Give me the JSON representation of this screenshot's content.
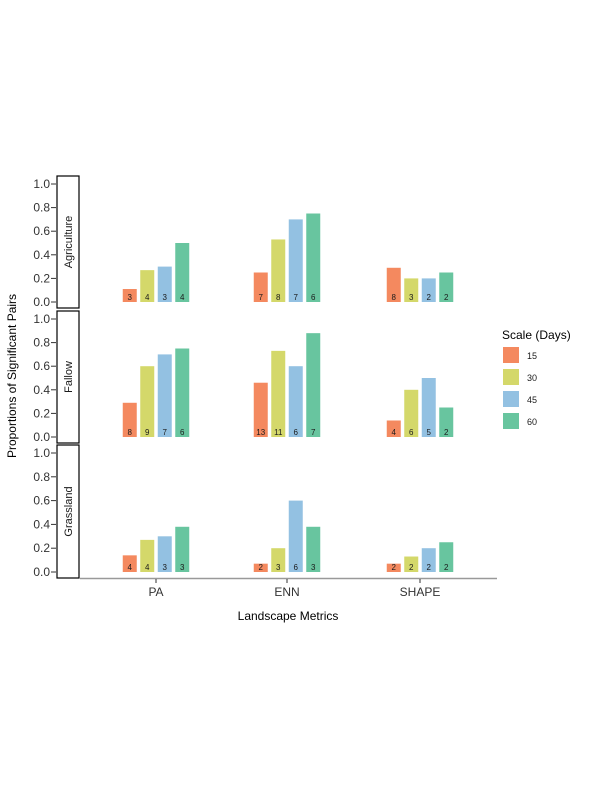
{
  "chart_data": {
    "type": "bar",
    "xlabel": "Landscape Metrics",
    "ylabel": "Proportions of Significant Pairs",
    "ylim": [
      0,
      1
    ],
    "yticks": [
      "0.0",
      "0.2",
      "0.4",
      "0.6",
      "0.8",
      "1.0"
    ],
    "categories": [
      "PA",
      "ENN",
      "SHAPE"
    ],
    "legend": {
      "title": "Scale (Days)",
      "position": "right",
      "items": [
        {
          "label": "15",
          "color": "#f4895f"
        },
        {
          "label": "30",
          "color": "#d4d86a"
        },
        {
          "label": "45",
          "color": "#93c1e2"
        },
        {
          "label": "60",
          "color": "#68c59f"
        }
      ]
    },
    "panels": [
      {
        "name": "Agriculture",
        "series_values": [
          [
            0.11,
            0.27,
            0.3,
            0.5
          ],
          [
            0.25,
            0.53,
            0.7,
            0.75
          ],
          [
            0.29,
            0.2,
            0.2,
            0.25
          ]
        ],
        "series_counts": [
          [
            "3",
            "4",
            "3",
            "4"
          ],
          [
            "7",
            "8",
            "7",
            "6"
          ],
          [
            "8",
            "3",
            "2",
            "2"
          ]
        ]
      },
      {
        "name": "Fallow",
        "series_values": [
          [
            0.29,
            0.6,
            0.7,
            0.75
          ],
          [
            0.46,
            0.73,
            0.6,
            0.88
          ],
          [
            0.14,
            0.4,
            0.5,
            0.25
          ]
        ],
        "series_counts": [
          [
            "8",
            "9",
            "7",
            "6"
          ],
          [
            "13",
            "11",
            "6",
            "7"
          ],
          [
            "4",
            "6",
            "5",
            "2"
          ]
        ]
      },
      {
        "name": "Grassland",
        "series_values": [
          [
            0.14,
            0.27,
            0.3,
            0.38
          ],
          [
            0.07,
            0.2,
            0.6,
            0.38
          ],
          [
            0.07,
            0.13,
            0.2,
            0.25
          ]
        ],
        "series_counts": [
          [
            "4",
            "4",
            "3",
            "3"
          ],
          [
            "2",
            "3",
            "6",
            "3"
          ],
          [
            "2",
            "2",
            "2",
            "2"
          ]
        ]
      }
    ]
  }
}
